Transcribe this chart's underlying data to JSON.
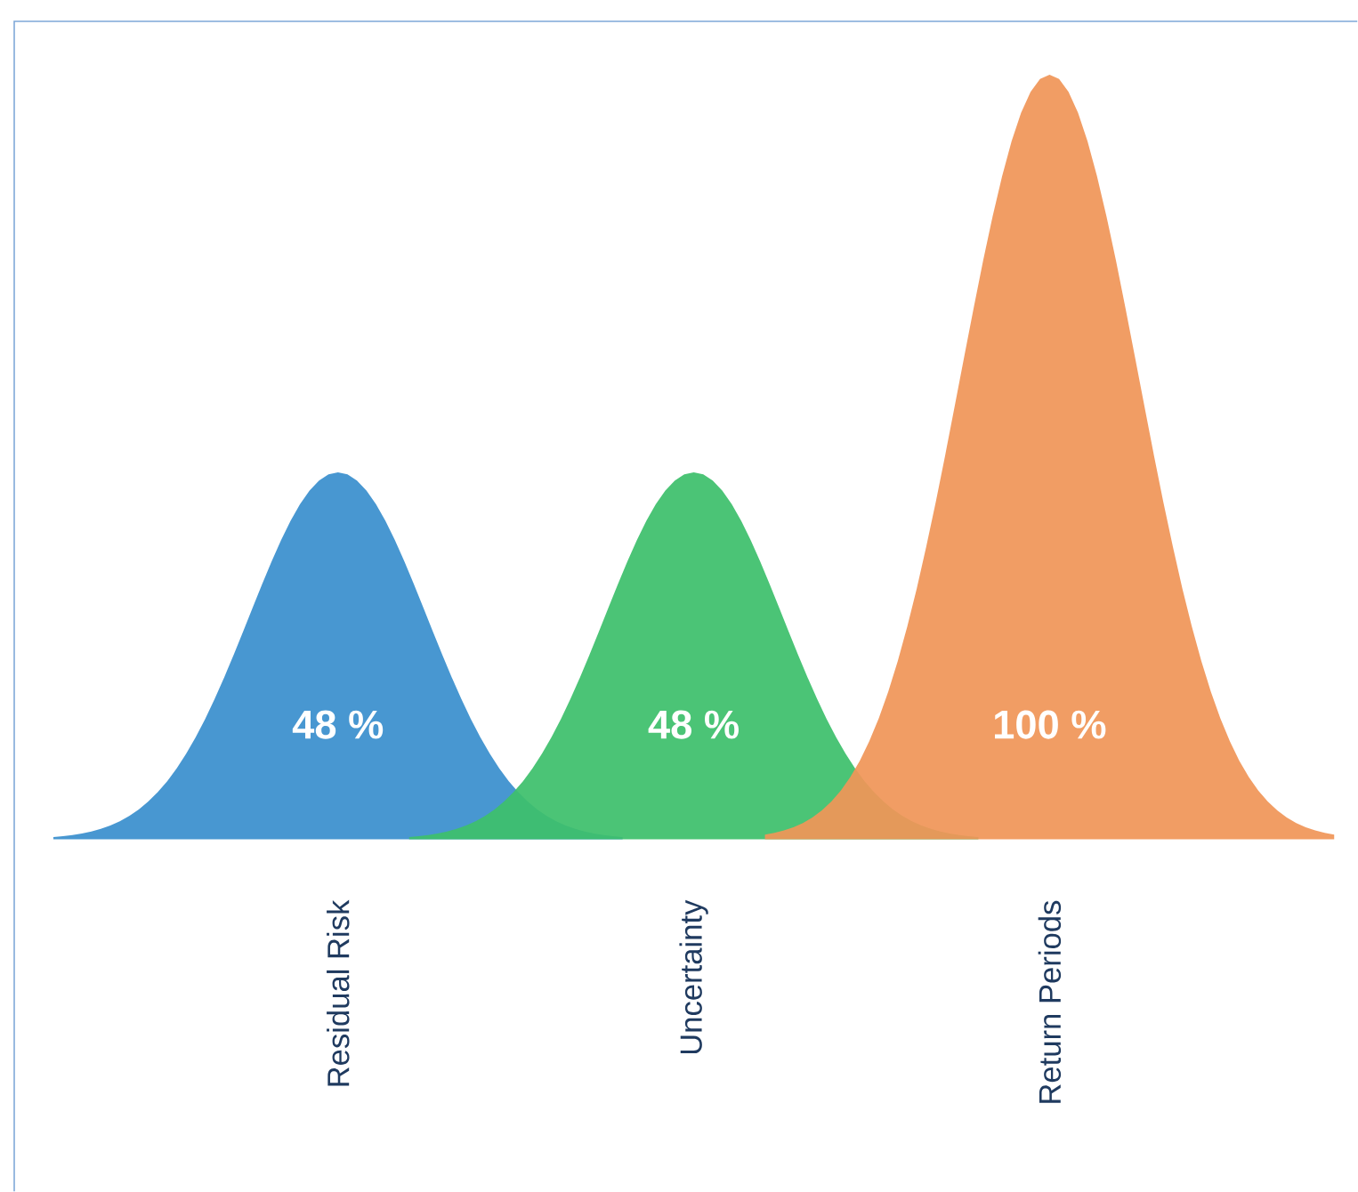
{
  "chart_data": {
    "type": "other",
    "categories": [
      "Residual Risk",
      "Uncertainty",
      "Return Periods"
    ],
    "values": [
      48,
      48,
      100
    ],
    "value_labels": [
      "48 %",
      "48 %",
      "100 %"
    ],
    "colors": [
      "#3a8fcd",
      "#3dbf6c",
      "#f09658"
    ]
  }
}
